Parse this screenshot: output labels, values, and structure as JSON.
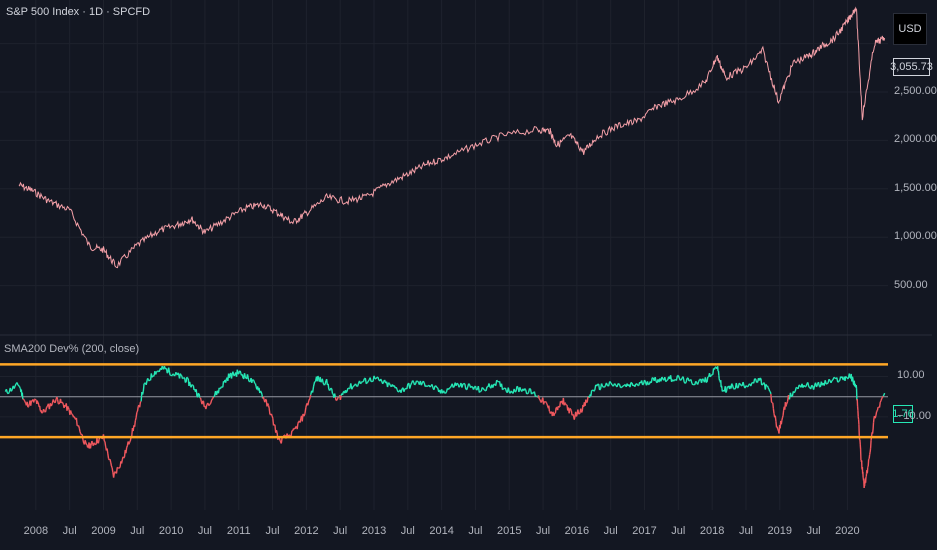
{
  "header": {
    "title": "S&P 500 Index · 1D · SPCFD",
    "indicator_title": "SMA200 Dev% (200, close)",
    "currency": "USD",
    "last_price": "3,055.73",
    "last_indicator": "1.76"
  },
  "colors": {
    "background": "#131722",
    "price_line": "#f4a0a8",
    "positive": "#26e7b5",
    "negative": "#f0585e",
    "threshold": "#ffa726",
    "zero_line": "#9598a1",
    "grid": "#1e222d"
  },
  "chart_data": [
    {
      "type": "line",
      "name": "price",
      "title": "S&P 500 Index · 1D · SPCFD",
      "x": [
        2007.75,
        2007.95,
        2008.2,
        2008.5,
        2008.8,
        2009.0,
        2009.19,
        2009.5,
        2009.8,
        2010.1,
        2010.3,
        2010.5,
        2010.8,
        2011.1,
        2011.35,
        2011.6,
        2011.8,
        2012.0,
        2012.3,
        2012.6,
        2012.9,
        2013.2,
        2013.5,
        2013.8,
        2014.1,
        2014.5,
        2014.9,
        2015.4,
        2015.6,
        2015.7,
        2015.9,
        2016.1,
        2016.3,
        2016.6,
        2016.9,
        2017.2,
        2017.5,
        2017.9,
        2018.07,
        2018.2,
        2018.5,
        2018.75,
        2018.98,
        2019.2,
        2019.45,
        2019.6,
        2019.8,
        2020.0,
        2020.13,
        2020.22,
        2020.4,
        2020.55
      ],
      "y": [
        1540,
        1480,
        1370,
        1280,
        900,
        870,
        700,
        920,
        1060,
        1130,
        1190,
        1050,
        1180,
        1300,
        1340,
        1240,
        1150,
        1250,
        1410,
        1370,
        1420,
        1550,
        1650,
        1760,
        1830,
        1950,
        2050,
        2110,
        2100,
        1950,
        2050,
        1880,
        2040,
        2150,
        2200,
        2360,
        2420,
        2600,
        2870,
        2650,
        2750,
        2930,
        2400,
        2800,
        2880,
        2960,
        3050,
        3230,
        3380,
        2240,
        3000,
        3055.73
      ],
      "ylim": [
        0,
        3450
      ],
      "yticks": [
        500,
        1000,
        1500,
        2000,
        2500
      ],
      "ytick_labels": [
        "500.00",
        "1,000.00",
        "1,500.00",
        "2,000.00",
        "2,500.00"
      ]
    },
    {
      "type": "line",
      "name": "SMA200 Dev%",
      "title": "SMA200 Dev% (200, close)",
      "x": [
        2007.55,
        2007.75,
        2007.85,
        2008.0,
        2008.1,
        2008.3,
        2008.45,
        2008.6,
        2008.75,
        2008.85,
        2009.0,
        2009.15,
        2009.3,
        2009.45,
        2009.6,
        2009.75,
        2009.9,
        2010.05,
        2010.2,
        2010.35,
        2010.5,
        2010.7,
        2010.85,
        2011.0,
        2011.15,
        2011.3,
        2011.45,
        2011.6,
        2011.8,
        2011.95,
        2012.15,
        2012.3,
        2012.45,
        2012.6,
        2012.8,
        2013.0,
        2013.2,
        2013.4,
        2013.6,
        2013.8,
        2014.0,
        2014.2,
        2014.4,
        2014.6,
        2014.8,
        2015.0,
        2015.2,
        2015.4,
        2015.55,
        2015.65,
        2015.8,
        2015.95,
        2016.1,
        2016.25,
        2016.45,
        2016.7,
        2016.9,
        2017.1,
        2017.3,
        2017.5,
        2017.7,
        2017.9,
        2018.07,
        2018.15,
        2018.3,
        2018.5,
        2018.7,
        2018.85,
        2018.98,
        2019.1,
        2019.3,
        2019.5,
        2019.7,
        2019.9,
        2020.05,
        2020.13,
        2020.2,
        2020.25,
        2020.3,
        2020.4,
        2020.55
      ],
      "y": [
        2,
        6,
        -4,
        -2,
        -8,
        -1,
        -5,
        -12,
        -25,
        -23,
        -20,
        -39,
        -30,
        -15,
        5,
        12,
        14,
        11,
        9,
        4,
        -5,
        3,
        10,
        12,
        9,
        4,
        -6,
        -22,
        -18,
        -10,
        9,
        7,
        -2,
        4,
        7,
        9,
        6,
        3,
        7,
        6,
        2,
        6,
        5,
        3,
        7,
        3,
        4,
        1,
        -4,
        -9,
        -2,
        -10,
        -5,
        4,
        6,
        5,
        6,
        8,
        9,
        9,
        7,
        8,
        15,
        3,
        5,
        6,
        8,
        3,
        -18,
        -2,
        6,
        5,
        7,
        9,
        10,
        5,
        -30,
        -45,
        -35,
        -10,
        1.76
      ],
      "ylim": [
        -56,
        30
      ],
      "yticks": [
        10,
        -10
      ],
      "ytick_labels": [
        "10.00",
        "−10.00"
      ],
      "thresholds": [
        16,
        -20
      ],
      "zero": 0
    }
  ],
  "x_axis": {
    "ticks": [
      2008,
      2008.5,
      2009,
      2009.5,
      2010,
      2010.5,
      2011,
      2011.5,
      2012,
      2012.5,
      2013,
      2013.5,
      2014,
      2014.5,
      2015,
      2015.5,
      2016,
      2016.5,
      2017,
      2017.5,
      2018,
      2018.5,
      2019,
      2019.5,
      2020
    ],
    "labels": [
      "2008",
      "Jul",
      "2009",
      "Jul",
      "2010",
      "Jul",
      "2011",
      "Jul",
      "2012",
      "Jul",
      "2013",
      "Jul",
      "2014",
      "Jul",
      "2015",
      "Jul",
      "2016",
      "Jul",
      "2017",
      "Jul",
      "2018",
      "Jul",
      "2019",
      "Jul",
      "2020"
    ]
  }
}
